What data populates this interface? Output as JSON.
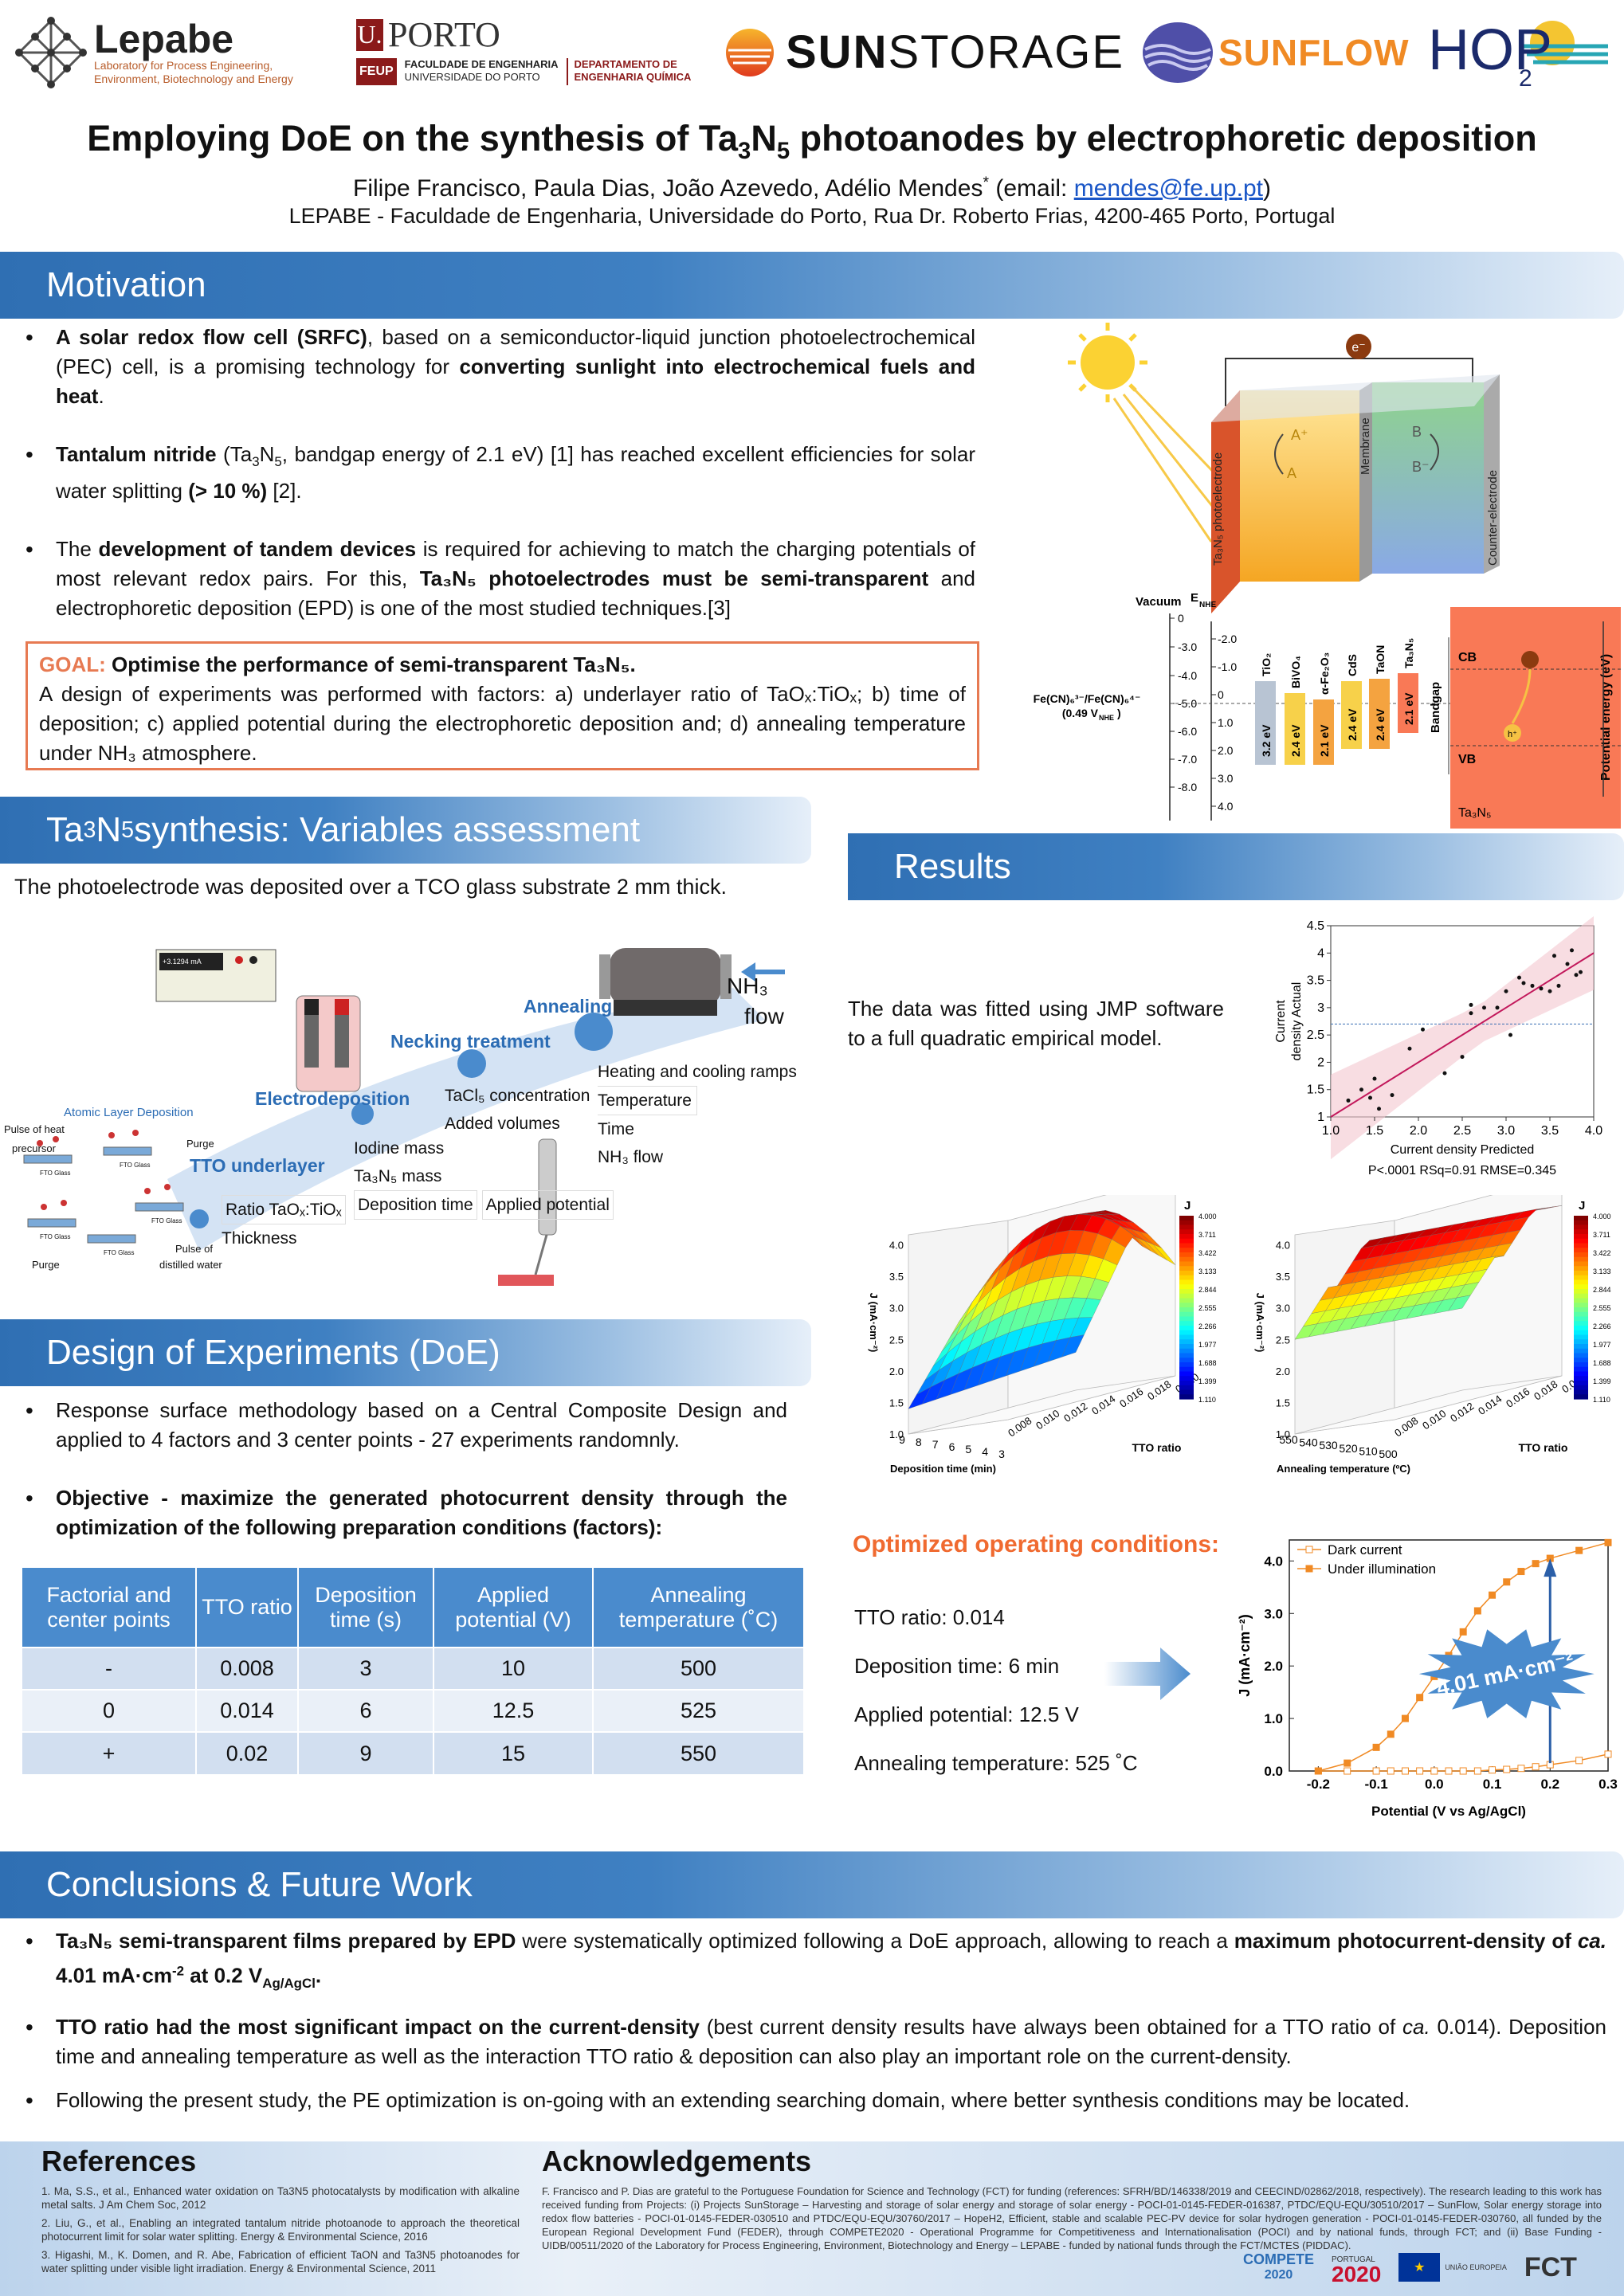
{
  "header": {
    "lepabe": {
      "name": "Lepabe",
      "line1": "Laboratory for Process Engineering,",
      "line2": "Environment, Biotechnology and Energy"
    },
    "porto": {
      "initial": "U.",
      "name": "PORTO",
      "feup": "FEUP",
      "fac1": "FACULDADE DE ENGENHARIA",
      "fac2": "UNIVERSIDADE DO PORTO",
      "dep1": "DEPARTAMENTO DE",
      "dep2": "ENGENHARIA QUÍMICA"
    },
    "sunstorage": {
      "sun": "SUN",
      "storage": "STORAGE"
    },
    "sunflow": "SUNFLOW",
    "hope": {
      "text": "HOP",
      "sub": "2"
    },
    "title_pre": "Employing DoE on the synthesis of Ta",
    "title_sub1": "3",
    "title_mid": "N",
    "title_sub2": "5",
    "title_post": " photoanodes by electrophoretic deposition",
    "authors_pre": "Filipe Francisco, Paula Dias, João Azevedo, Adélio Mendes",
    "authors_sup": "*",
    "authors_mid": " (email: ",
    "email": "mendes@fe.up.pt",
    "authors_post": ")",
    "affiliation": "LEPABE - Faculdade de Engenharia, Universidade do Porto, Rua Dr. Roberto Frias, 4200-465 Porto, Portugal"
  },
  "sections": {
    "motivation": "Motivation",
    "synthesis_pre": "Ta",
    "synthesis_sub1": "3",
    "synthesis_mid": "N",
    "synthesis_sub2": "5",
    "synthesis_post": " synthesis: Variables assessment",
    "results": "Results",
    "doe": "Design of Experiments (DoE)",
    "conclusions": "Conclusions & Future Work"
  },
  "motivation": {
    "b1_bold1": "A solar redox flow cell (SRFC)",
    "b1_text1": ", based on a semiconductor-liquid junction photoelectrochemical (PEC) cell, is a promising technology for ",
    "b1_bold2": "converting sunlight into electrochemical fuels and heat",
    "b1_text2": ".",
    "b2_bold": "Tantalum nitride",
    "b2_text1": " (Ta",
    "b2_sub1": "3",
    "b2_n": "N",
    "b2_sub2": "5",
    "b2_text2": ", bandgap energy of 2.1 eV) [1] has reached excellent efficiencies for solar water splitting ",
    "b2_bold2": "(> 10 %)",
    "b2_text3": " [2].",
    "b3_text1": "The ",
    "b3_bold1": "development of tandem devices",
    "b3_text2": " is required for achieving to match the charging potentials of most relevant redox pairs. For this, ",
    "b3_bold2": "Ta₃N₅ photoelectrodes must be semi-transparent",
    "b3_text3": " and electrophoretic deposition (EPD) is one of the most studied techniques.[3]",
    "goal_label": "GOAL:",
    "goal_bold": " Optimise the performance of semi-transparent Ta₃N₅.",
    "goal_text": "A design of experiments was performed with factors: a) underlayer ratio of TaOₓ:TiOₓ; b) time of deposition; c) applied potential during the electrophoretic deposition and; d) annealing temperature under NH₃ atmosphere."
  },
  "cell_diagram": {
    "electron": "e⁻",
    "a_plus": "A⁺",
    "a": "A",
    "b": "B",
    "b_minus": "B⁻",
    "photoelectrode": "Ta₃N₅ photoelectrode",
    "membrane": "Membrane",
    "counter": "Counter-electrode",
    "vacuum": "Vacuum",
    "enhe": "E",
    "enhe_sub": "NHE",
    "left_ticks": [
      "0",
      "-3.0",
      "-4.0",
      "-5.0",
      "-6.0",
      "-7.0",
      "-8.0"
    ],
    "right_ticks": [
      "-2.0",
      "-1.0",
      "0",
      "1.0",
      "2.0",
      "3.0",
      "4.0"
    ],
    "redox1": "Fe(CN)₆³⁻/Fe(CN)₆⁴⁻",
    "redox2": "(0.49 V",
    "redox2_sub": "NHE",
    "redox2_end": ")",
    "materials": [
      "TiO₂",
      "BiVO₄",
      "α-Fe₂O₃",
      "CdS",
      "TaON",
      "Ta₃N₅"
    ],
    "gaps": [
      "3.2 eV",
      "2.4 eV",
      "2.1 eV",
      "2.4 eV",
      "2.4 eV",
      "2.1 eV"
    ],
    "bandgap": "Bandgap",
    "cb": "CB",
    "vb": "VB",
    "h_plus": "h⁺",
    "tan": "Ta₃N₅",
    "potential": "Potential energy (eV)"
  },
  "synthesis": {
    "intro": "The photoelectrode was deposited over a TCO glass substrate 2 mm thick.",
    "meter": "+3.1294 mA",
    "nh3": "NH₃",
    "flow": "flow",
    "annealing": "Annealing",
    "necking": "Necking treatment",
    "electrodeposition": "Electrodeposition",
    "tto": "TTO underlayer",
    "ald": "Atomic Layer Deposition",
    "pulse_heat": "Pulse of heat",
    "precursor": "precursor",
    "purge1": "Purge",
    "purge2": "Purge",
    "pulse_dist1": "Pulse of",
    "pulse_dist2": "distilled water",
    "fto": "FTO Glass",
    "ann_items": [
      "Heating and cooling ramps",
      "Temperature",
      "Time",
      "NH₃ flow"
    ],
    "neck_items": [
      "TaCl₅ concentration",
      "Added volumes"
    ],
    "electro_items": [
      "Iodine mass",
      "Ta₃N₅ mass",
      "Deposition time",
      "Applied potential"
    ],
    "tto_items": [
      "Ratio TaOₓ:TiOₓ",
      "Thickness"
    ]
  },
  "doe": {
    "b1": "Response surface methodology based on a Central Composite Design and applied to 4 factors and 3 center points - 27 experiments randomnly.",
    "b2_bold": "Objective",
    "b2_text": " - maximize the generated photocurrent density through the optimization of the following preparation conditions (factors):",
    "table": {
      "headers": [
        "Factorial and center points",
        "TTO ratio",
        "Deposition time (s)",
        "Applied potential (V)",
        "Annealing temperature (˚C)"
      ],
      "rows": [
        [
          "-",
          "0.008",
          "3",
          "10",
          "500"
        ],
        [
          "0",
          "0.014",
          "6",
          "12.5",
          "525"
        ],
        [
          "+",
          "0.02",
          "9",
          "15",
          "550"
        ]
      ]
    }
  },
  "results": {
    "fit_text": "The data was fitted using JMP software to a full quadratic empirical model.",
    "optimized_title": "Optimized operating conditions:",
    "conditions": [
      "TTO ratio: 0.014",
      "Deposition time: 6 min",
      "Applied potential: 12.5 V",
      "Annealing temperature: 525 ˚C"
    ],
    "badge": "4.01 mA·cm⁻²"
  },
  "chart_data": [
    {
      "type": "scatter",
      "title": "",
      "xlabel": "Current density Predicted",
      "ylabel": "Current density Actual",
      "caption": "P<.0001 RSq=0.91 RMSE=0.345",
      "xlim": [
        1.0,
        4.0
      ],
      "ylim": [
        1.0,
        4.5
      ],
      "xticks": [
        "1.0",
        "1.5",
        "2.0",
        "2.5",
        "3.0",
        "3.5",
        "4.0"
      ],
      "yticks": [
        "1",
        "1.5",
        "2",
        "2.5",
        "3",
        "3.5",
        "4",
        "4.5"
      ],
      "mean_line": 2.7,
      "points": [
        [
          1.2,
          1.3
        ],
        [
          1.35,
          1.5
        ],
        [
          1.45,
          1.35
        ],
        [
          1.5,
          1.7
        ],
        [
          1.55,
          1.15
        ],
        [
          1.7,
          1.4
        ],
        [
          1.9,
          2.25
        ],
        [
          2.05,
          2.6
        ],
        [
          2.3,
          1.8
        ],
        [
          2.5,
          2.1
        ],
        [
          2.6,
          2.9
        ],
        [
          2.6,
          3.05
        ],
        [
          2.75,
          3.0
        ],
        [
          2.9,
          3.0
        ],
        [
          3.0,
          3.3
        ],
        [
          3.15,
          3.55
        ],
        [
          3.3,
          3.4
        ],
        [
          3.4,
          3.35
        ],
        [
          3.5,
          3.3
        ],
        [
          3.55,
          3.95
        ],
        [
          3.6,
          3.4
        ],
        [
          3.7,
          3.8
        ],
        [
          3.8,
          3.6
        ],
        [
          3.85,
          3.65
        ],
        [
          3.75,
          4.05
        ],
        [
          3.2,
          3.45
        ],
        [
          3.05,
          2.5
        ]
      ],
      "fit": [
        [
          1.0,
          1.0
        ],
        [
          4.0,
          4.0
        ]
      ]
    },
    {
      "type": "heatmap",
      "title": "",
      "zlabel": "J (mA·cm⁻²)",
      "xlabel": "Deposition time (min)",
      "ylabel": "TTO ratio",
      "legend_title": "J",
      "legend_ticks": [
        "4.000",
        "3.711",
        "3.422",
        "3.133",
        "2.844",
        "2.555",
        "2.266",
        "1.977",
        "1.688",
        "1.399",
        "1.110"
      ],
      "zticks": [
        "1.0",
        "1.5",
        "2.0",
        "2.5",
        "3.0",
        "3.5",
        "4.0"
      ],
      "xticks": [
        "9",
        "8",
        "7",
        "6",
        "5",
        "4",
        "3"
      ],
      "yticks": [
        "0.008",
        "0.010",
        "0.012",
        "0.014",
        "0.016",
        "0.018",
        "0.020"
      ]
    },
    {
      "type": "heatmap",
      "title": "",
      "zlabel": "J (mA·cm⁻²)",
      "xlabel": "Annealing temperature (ºC)",
      "ylabel": "TTO ratio",
      "legend_title": "J",
      "legend_ticks": [
        "4.000",
        "3.711",
        "3.422",
        "3.133",
        "2.844",
        "2.555",
        "2.266",
        "1.977",
        "1.688",
        "1.399",
        "1.110"
      ],
      "zticks": [
        "1.0",
        "1.5",
        "2.0",
        "2.5",
        "3.0",
        "3.5",
        "4.0"
      ],
      "xticks": [
        "550",
        "540",
        "530",
        "520",
        "510",
        "500"
      ],
      "yticks": [
        "0.008",
        "0.010",
        "0.012",
        "0.014",
        "0.016",
        "0.018",
        "0.020"
      ]
    },
    {
      "type": "line",
      "title": "",
      "xlabel": "Potential (V vs Ag/AgCl)",
      "ylabel": "J (mA·cm⁻²)",
      "xlim": [
        -0.25,
        0.3
      ],
      "ylim": [
        0,
        4.4
      ],
      "xticks": [
        "-0.2",
        "-0.1",
        "0.0",
        "0.1",
        "0.2",
        "0.3"
      ],
      "yticks": [
        "0.0",
        "1.0",
        "2.0",
        "3.0",
        "4.0"
      ],
      "x": [
        -0.2,
        -0.15,
        -0.1,
        -0.075,
        -0.05,
        -0.025,
        0.0,
        0.025,
        0.05,
        0.075,
        0.1,
        0.125,
        0.15,
        0.175,
        0.2,
        0.25,
        0.3
      ],
      "series": [
        {
          "name": "Dark current",
          "values": [
            0,
            0,
            0,
            0,
            0,
            0,
            0,
            0,
            0,
            0,
            0.02,
            0.03,
            0.05,
            0.08,
            0.12,
            0.2,
            0.32
          ]
        },
        {
          "name": "Under illumination",
          "values": [
            0,
            0.15,
            0.45,
            0.7,
            1.0,
            1.4,
            1.8,
            2.2,
            2.65,
            3.05,
            3.35,
            3.6,
            3.8,
            3.95,
            4.05,
            4.2,
            4.35
          ]
        }
      ]
    }
  ],
  "conclusions": {
    "b1_bold": "Ta₃N₅ semi-transparent films prepared by EPD",
    "b1_text": " were systematically optimized following a DoE approach, allowing to reach a ",
    "b1_bold2": "maximum photocurrent-density of ",
    "b1_ca": "ca.",
    "b1_bold3": " 4.01 mA·cm",
    "b1_sup": "-2",
    "b1_bold4": " at 0.2 V",
    "b1_sub": "Ag/AgCl",
    "b1_end": ".",
    "b2_bold": "TTO ratio had the most significant impact on the current-density",
    "b2_text": " (best current density results have always been obtained for a TTO ratio of ",
    "b2_ca": "ca.",
    "b2_text2": " 0.014). Deposition time and annealing temperature as well as the interaction TTO ratio & deposition can also play an important role on the current-density.",
    "b3": "Following the present study, the PE optimization is on-going with an extending searching domain, where better synthesis conditions may be located."
  },
  "references": {
    "title": "References",
    "items": [
      "1.   Ma, S.S., et al., Enhanced water oxidation on Ta3N5 photocatalysts by modification with alkaline metal salts. J Am Chem Soc, 2012",
      "2.   Liu, G., et al., Enabling an integrated tantalum nitride photoanode to approach the theoretical photocurrent limit for solar water splitting. Energy & Environmental Science, 2016",
      "3.   Higashi, M., K. Domen, and R. Abe, Fabrication of efficient TaON and Ta3N5 photoanodes for water splitting under visible light irradiation. Energy & Environmental Science, 2011"
    ]
  },
  "acknowledgements": {
    "title": "Acknowledgements",
    "text": "F. Francisco and P. Dias are grateful to the Portuguese Foundation for Science and Technology (FCT) for funding (references: SFRH/BD/146338/2019 and CEECIND/02862/2018, respectively). The research leading to this work has received funding from Projects: (i) Projects SunStorage – Harvesting and storage of solar energy and storage of solar energy - POCI-01-0145-FEDER-016387,  PTDC/EQU-EQU/30510/2017 – SunFlow, Solar energy storage into redox flow batteries - POCI-01-0145-FEDER-030510 and PTDC/EQU-EQU/30760/2017 – HopeH2, Efficient, stable and scalable PEC-PV device for solar hydrogen generation - POCI-01-0145-FEDER-030760, all funded by the European Regional Development Fund (FEDER), through COMPETE2020 - Operational Programme for Competitiveness and Internationalisation (POCI) and by national funds, through FCT; and (ii) Base Funding - UIDB/00511/2020 of the Laboratory for Process Engineering, Environment, Biotechnology and Energy – LEPABE - funded by national funds through the FCT/MCTES (PIDDAC).",
    "logo_compete": "COMPETE",
    "logo_compete_year": "2020",
    "logo_portugal": "PORTUGAL",
    "logo_2020": "2020",
    "logo_fct": "FCT",
    "logo_eu": "UNIÃO EUROPEIA"
  }
}
